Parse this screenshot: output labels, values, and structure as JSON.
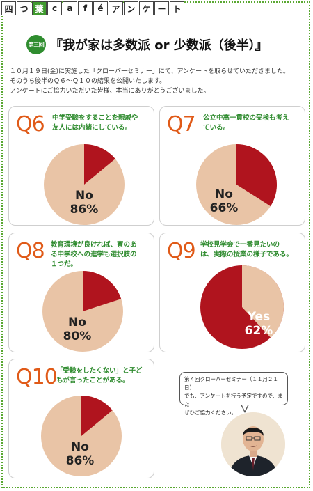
{
  "title_tiles": [
    "四",
    "つ",
    "葉",
    "c",
    "a",
    "f",
    "é",
    "ア",
    "ン",
    "ケ",
    "ー",
    "ト"
  ],
  "badge_text": "第三回",
  "heading": "『我が家は多数派 or 少数派（後半）』",
  "intro_lines": [
    "１０月１９日(金)に実施した「クローバーセミナー」にて、アンケートを取らせていただきました。",
    "そのうち後半のＱ６～Ｑ１０の結果を公開いたします。",
    "アンケートにご協力いただいた皆様、本当にありがとうございました。"
  ],
  "colors": {
    "accent": "#e05a18",
    "green": "#2e8b2e",
    "pie_main": "#e9c4a6",
    "pie_minor": "#b0141e"
  },
  "questions": [
    {
      "num": "Q6",
      "text": [
        "中学受験をすることを親戚や",
        "友人には内緒にしている。"
      ],
      "label": "No",
      "value": "86%",
      "percent": 86,
      "highlight": false
    },
    {
      "num": "Q7",
      "text": [
        "公立中高一貫校の受検も考え",
        "ている。"
      ],
      "label": "No",
      "value": "66%",
      "percent": 66,
      "highlight": false
    },
    {
      "num": "Q8",
      "text": [
        "教育環境が良ければ、寮のあ",
        "る中学校への進学も選択肢の",
        "１つだ。"
      ],
      "label": "No",
      "value": "80%",
      "percent": 80,
      "highlight": false
    },
    {
      "num": "Q9",
      "text": [
        "学校見学会で一番見たいの",
        "は、実際の授業の様子である。"
      ],
      "label": "Yes",
      "value": "62%",
      "percent": 62,
      "highlight": true
    },
    {
      "num": "Q10",
      "text": [
        "「受験をしたくない」と子ど",
        "もが言ったことがある。"
      ],
      "label": "No",
      "value": "86%",
      "percent": 86,
      "highlight": false
    }
  ],
  "bubble_lines": [
    "第４回クローバーセミナー（１１月２１日）",
    "でも、アンケートを行う予定ですので、また",
    "ぜひご協力ください。"
  ]
}
